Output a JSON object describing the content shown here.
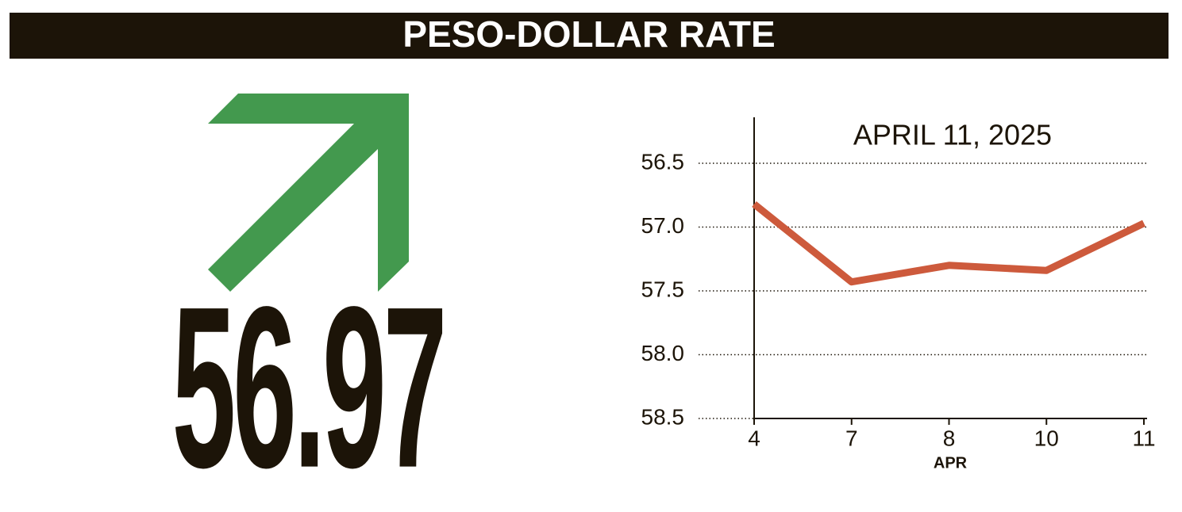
{
  "header": {
    "title": "PESO-DOLLAR RATE"
  },
  "rate": "56.97",
  "chart_data": {
    "type": "line",
    "annotation": "APRIL 11, 2025",
    "x_label": "APR",
    "categories": [
      "4",
      "7",
      "8",
      "10",
      "11"
    ],
    "values": [
      56.82,
      57.43,
      57.3,
      57.34,
      56.97
    ],
    "color": "#cd5a3c",
    "ylim": [
      56.14,
      58.5
    ],
    "inverted": true,
    "yticks": [
      56.5,
      {
        "value": 57,
        "label": "57.0"
      },
      57.5,
      {
        "value": 58,
        "label": "58.0"
      },
      58.5
    ],
    "grid": true
  }
}
